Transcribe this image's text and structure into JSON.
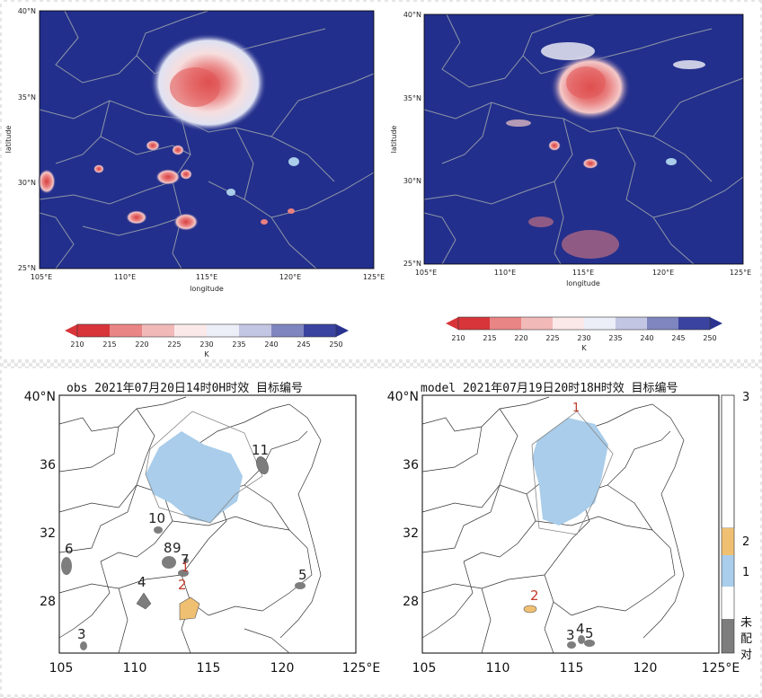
{
  "chart_data": [
    {
      "type": "heatmap",
      "panel": "top-left",
      "xlabel": "longitude",
      "ylabel": "latitude",
      "xlim": [
        105,
        125
      ],
      "ylim": [
        25,
        40
      ],
      "x_ticks": [
        "105°E",
        "110°E",
        "115°E",
        "120°E",
        "125°E"
      ],
      "y_ticks": [
        "40°N",
        "35°N",
        "30°N",
        "25°N"
      ],
      "colorbar": {
        "ticks": [
          "210",
          "215",
          "220",
          "225",
          "230",
          "235",
          "240",
          "245",
          "250"
        ],
        "unit": "K"
      }
    },
    {
      "type": "heatmap",
      "panel": "top-right",
      "xlabel": "longitude",
      "ylabel": "latitude",
      "xlim": [
        105,
        125
      ],
      "ylim": [
        25,
        40
      ],
      "x_ticks": [
        "105°E",
        "110°E",
        "115°E",
        "120°E",
        "125°E"
      ],
      "y_ticks": [
        "40°N",
        "35°N",
        "30°N",
        "25°N"
      ],
      "colorbar": {
        "ticks": [
          "210",
          "215",
          "220",
          "225",
          "230",
          "235",
          "240",
          "245",
          "250"
        ],
        "unit": "K"
      }
    },
    {
      "type": "heatmap",
      "panel": "bottom-left",
      "title": "obs  2021年07月20日14时0H时效  目标编号",
      "xlim": [
        105,
        125
      ],
      "ylim": [
        25,
        40
      ],
      "x_ticks": [
        "105",
        "110",
        "115",
        "120",
        "125°E"
      ],
      "y_ticks": [
        "40°N",
        "36",
        "32",
        "28"
      ],
      "labels": [
        "1",
        "2",
        "3",
        "4",
        "5",
        "6",
        "7",
        "8",
        "9",
        "10",
        "11"
      ]
    },
    {
      "type": "heatmap",
      "panel": "bottom-right",
      "title": "model  2021年07月19日20时18H时效  目标编号",
      "xlim": [
        105,
        125
      ],
      "ylim": [
        25,
        40
      ],
      "x_ticks": [
        "105",
        "110",
        "115",
        "120",
        "125°E"
      ],
      "y_ticks": [
        "40°N",
        "36",
        "32",
        "28"
      ],
      "labels": [
        "1",
        "2",
        "3",
        "4",
        "5"
      ],
      "colorbar": {
        "ticks": [
          "3",
          "2",
          "1"
        ],
        "unmatched_label": [
          "未",
          "配",
          "对"
        ]
      }
    }
  ],
  "colors": {
    "ocean_blue": "#232f8c",
    "border_gray": "#8c96a8",
    "cold_red": "#d94040",
    "pink": "#f0a8a8",
    "white_cloud": "#f4f4fa",
    "target_blue": "#a9cdea",
    "target_orange": "#f0c072",
    "unmatched_gray": "#7d7d7d"
  },
  "colorbar_colors": [
    "#d8353a",
    "#e98585",
    "#f2b9b9",
    "#fbe9e9",
    "#eceef8",
    "#c3c6e3",
    "#7f86bf",
    "#3a43a0"
  ]
}
